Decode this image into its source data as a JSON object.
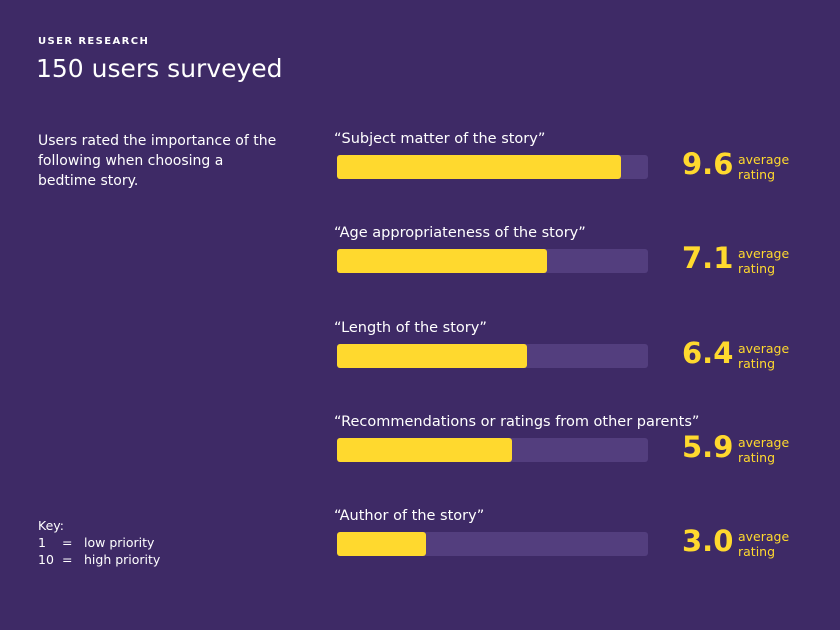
{
  "header": {
    "eyebrow": "USER RESEARCH",
    "title": "150 users surveyed"
  },
  "description": "Users rated the importance of the following when choosing a bedtime story.",
  "key": {
    "title": "Key:",
    "rows": [
      {
        "num": "1",
        "eq": "=",
        "text": "low priority"
      },
      {
        "num": "10",
        "eq": "=",
        "text": "high priority"
      }
    ]
  },
  "colors": {
    "background": "#3e2a66",
    "bar": "#ffd92e",
    "track": "#533e7e"
  },
  "chart_data": {
    "type": "bar",
    "orientation": "horizontal",
    "scale_max": 10.5,
    "unit_label": "average rating",
    "categories": [
      "“Subject matter of the story”",
      "“Age appropriateness of the story”",
      "“Length of the story”",
      "“Recommendations or ratings from other parents”",
      "“Author of the story”"
    ],
    "values": [
      9.6,
      7.1,
      6.4,
      5.9,
      3.0
    ],
    "value_labels": [
      "9.6",
      "7.1",
      "6.4",
      "5.9",
      "3.0"
    ]
  }
}
